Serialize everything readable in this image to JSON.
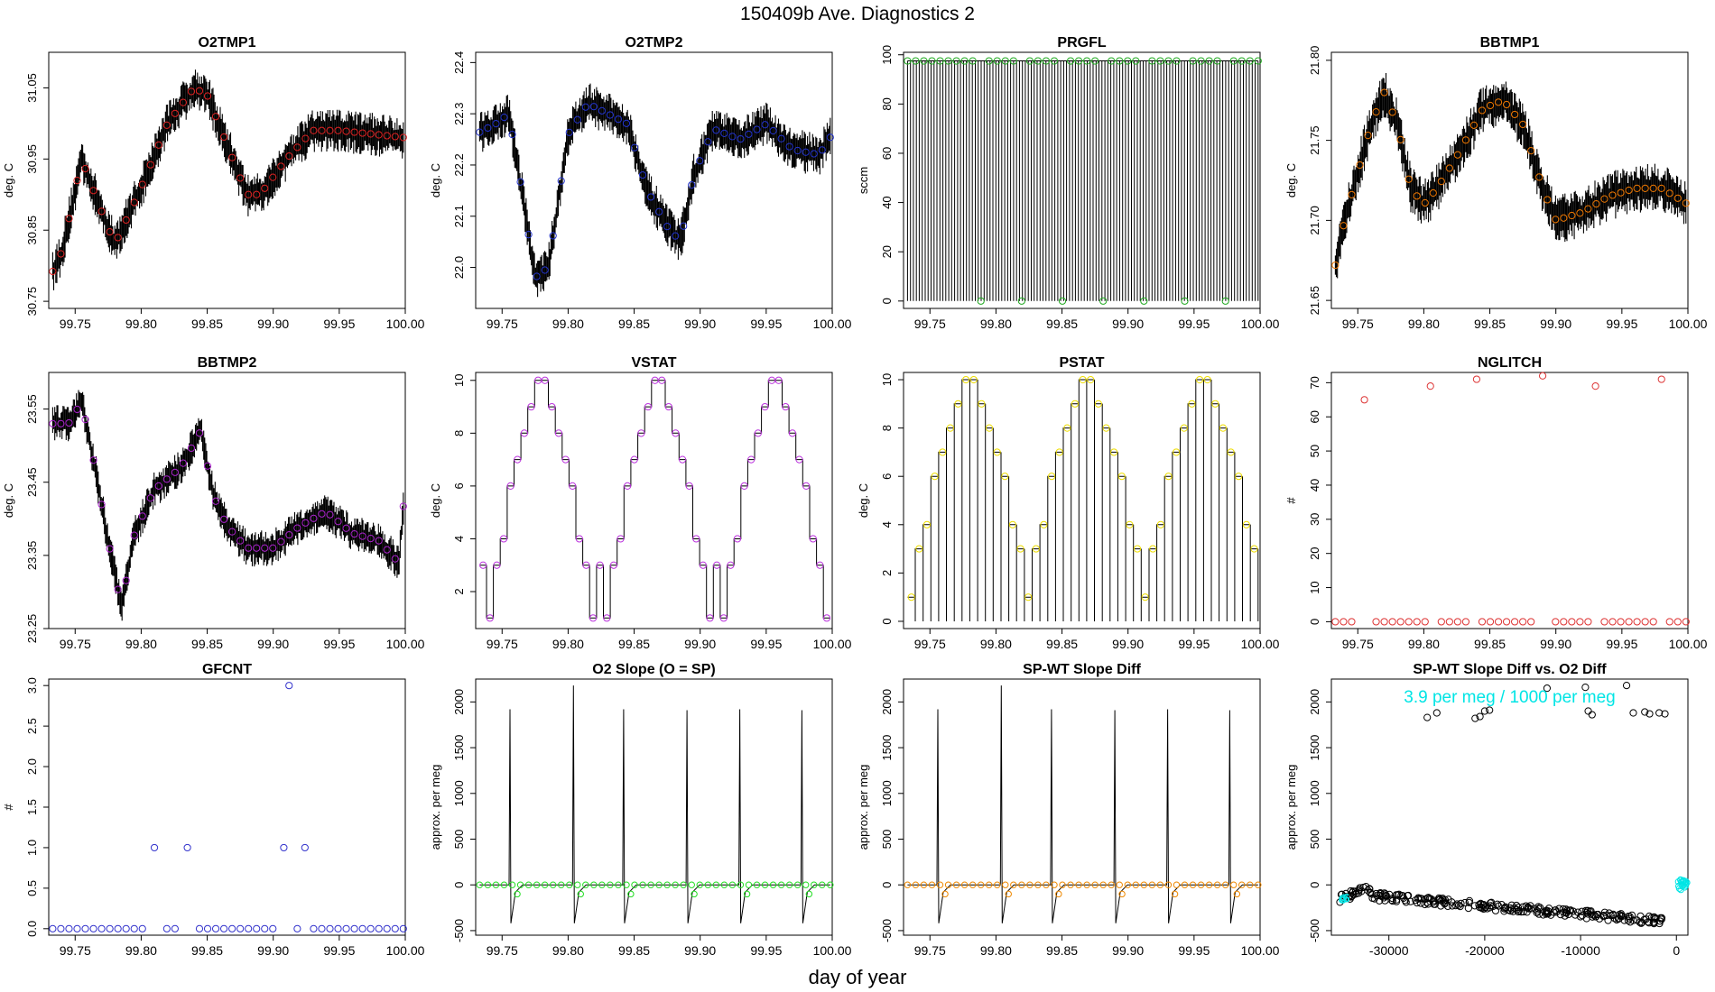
{
  "figure": {
    "title": "150409b   Ave. Diagnostics 2",
    "xlabel": "day of year"
  },
  "chart_data": [
    {
      "type": "line",
      "title": "O2TMP1",
      "ylabel": "deg. C",
      "xlim": [
        99.73,
        100.0
      ],
      "ylim": [
        30.74,
        31.1
      ],
      "xticks": [
        99.75,
        99.8,
        99.85,
        99.9,
        99.95,
        100.0
      ],
      "xtick_labels": [
        "99.75",
        "99.80",
        "99.85",
        "99.90",
        "99.95",
        "100.00"
      ],
      "yticks": [
        30.75,
        30.85,
        30.95,
        31.05
      ],
      "ytick_labels": [
        "30.75",
        "30.85",
        "30.95",
        "31.05"
      ],
      "marker_color": "#dd2222",
      "anchors": [
        [
          99.73,
          30.78
        ],
        [
          99.74,
          30.82
        ],
        [
          99.755,
          30.95
        ],
        [
          99.765,
          30.9
        ],
        [
          99.78,
          30.83
        ],
        [
          99.8,
          30.91
        ],
        [
          99.82,
          31.0
        ],
        [
          99.84,
          31.05
        ],
        [
          99.85,
          31.04
        ],
        [
          99.865,
          30.97
        ],
        [
          99.88,
          30.9
        ],
        [
          99.89,
          30.9
        ],
        [
          99.91,
          30.95
        ],
        [
          99.93,
          30.99
        ],
        [
          99.95,
          30.99
        ],
        [
          100.0,
          30.98
        ]
      ],
      "noise": 0.022
    },
    {
      "type": "line",
      "title": "O2TMP2",
      "ylabel": "deg. C",
      "xlim": [
        99.73,
        100.0
      ],
      "ylim": [
        21.92,
        22.42
      ],
      "xticks": [
        99.75,
        99.8,
        99.85,
        99.9,
        99.95,
        100.0
      ],
      "xtick_labels": [
        "99.75",
        "99.80",
        "99.85",
        "99.90",
        "99.95",
        "100.00"
      ],
      "yticks": [
        22.0,
        22.1,
        22.2,
        22.3,
        22.4
      ],
      "ytick_labels": [
        "22.0",
        "22.1",
        "22.2",
        "22.3",
        "22.4"
      ],
      "marker_color": "#2233cc",
      "anchors": [
        [
          99.73,
          22.26
        ],
        [
          99.745,
          22.28
        ],
        [
          99.755,
          22.3
        ],
        [
          99.765,
          22.15
        ],
        [
          99.775,
          21.98
        ],
        [
          99.785,
          22.0
        ],
        [
          99.8,
          22.26
        ],
        [
          99.815,
          22.32
        ],
        [
          99.83,
          22.3
        ],
        [
          99.845,
          22.28
        ],
        [
          99.86,
          22.15
        ],
        [
          99.875,
          22.08
        ],
        [
          99.885,
          22.05
        ],
        [
          99.895,
          22.18
        ],
        [
          99.91,
          22.27
        ],
        [
          99.93,
          22.25
        ],
        [
          99.95,
          22.28
        ],
        [
          99.97,
          22.23
        ],
        [
          99.99,
          22.22
        ],
        [
          100.0,
          22.26
        ]
      ],
      "noise": 0.03
    },
    {
      "type": "line",
      "title": "PRGFL",
      "ylabel": "sccm",
      "xlim": [
        99.73,
        100.0
      ],
      "ylim": [
        -3,
        101
      ],
      "xticks": [
        99.75,
        99.8,
        99.85,
        99.9,
        99.95,
        100.0
      ],
      "xtick_labels": [
        "99.75",
        "99.80",
        "99.85",
        "99.90",
        "99.95",
        "100.00"
      ],
      "yticks": [
        0,
        20,
        40,
        60,
        80,
        100
      ],
      "ytick_labels": [
        "0",
        "20",
        "40",
        "60",
        "80",
        "100"
      ],
      "marker_color": "#22aa22",
      "low": 0,
      "high": 97.5
    },
    {
      "type": "line",
      "title": "BBTMP1",
      "ylabel": "deg. C",
      "xlim": [
        99.73,
        100.0
      ],
      "ylim": [
        21.645,
        21.805
      ],
      "xticks": [
        99.75,
        99.8,
        99.85,
        99.9,
        99.95,
        100.0
      ],
      "xtick_labels": [
        "99.75",
        "99.80",
        "99.85",
        "99.90",
        "99.95",
        "100.00"
      ],
      "yticks": [
        21.65,
        21.7,
        21.75,
        21.8
      ],
      "ytick_labels": [
        "21.65",
        "21.70",
        "21.75",
        "21.80"
      ],
      "marker_color": "#ee7700",
      "anchors": [
        [
          99.73,
          21.66
        ],
        [
          99.74,
          21.7
        ],
        [
          99.76,
          21.76
        ],
        [
          99.77,
          21.78
        ],
        [
          99.78,
          21.76
        ],
        [
          99.79,
          21.72
        ],
        [
          99.8,
          21.71
        ],
        [
          99.81,
          21.72
        ],
        [
          99.825,
          21.74
        ],
        [
          99.845,
          21.77
        ],
        [
          99.86,
          21.775
        ],
        [
          99.875,
          21.76
        ],
        [
          99.89,
          21.72
        ],
        [
          99.9,
          21.7
        ],
        [
          99.92,
          21.705
        ],
        [
          99.94,
          21.715
        ],
        [
          99.96,
          21.72
        ],
        [
          99.98,
          21.72
        ],
        [
          100.0,
          21.71
        ]
      ],
      "noise": 0.011
    },
    {
      "type": "line",
      "title": "BBTMP2",
      "ylabel": "deg. C",
      "xlim": [
        99.73,
        100.0
      ],
      "ylim": [
        23.25,
        23.6
      ],
      "xticks": [
        99.75,
        99.8,
        99.85,
        99.9,
        99.95,
        100.0
      ],
      "xtick_labels": [
        "99.75",
        "99.80",
        "99.85",
        "99.90",
        "99.95",
        "100.00"
      ],
      "yticks": [
        23.25,
        23.35,
        23.45,
        23.55
      ],
      "ytick_labels": [
        "23.25",
        "23.35",
        "23.45",
        "23.55"
      ],
      "marker_color": "#aa22cc",
      "anchors": [
        [
          99.73,
          23.53
        ],
        [
          99.745,
          23.53
        ],
        [
          99.755,
          23.56
        ],
        [
          99.765,
          23.47
        ],
        [
          99.775,
          23.37
        ],
        [
          99.785,
          23.28
        ],
        [
          99.795,
          23.38
        ],
        [
          99.81,
          23.44
        ],
        [
          99.83,
          23.47
        ],
        [
          99.845,
          23.52
        ],
        [
          99.855,
          23.43
        ],
        [
          99.865,
          23.39
        ],
        [
          99.88,
          23.36
        ],
        [
          99.9,
          23.36
        ],
        [
          99.92,
          23.39
        ],
        [
          99.94,
          23.41
        ],
        [
          99.96,
          23.38
        ],
        [
          99.98,
          23.37
        ],
        [
          99.995,
          23.34
        ],
        [
          100.0,
          23.45
        ]
      ],
      "noise": 0.018
    },
    {
      "type": "line",
      "title": "VSTAT",
      "ylabel": "deg. C",
      "xlim": [
        99.73,
        100.0
      ],
      "ylim": [
        0.6,
        10.3
      ],
      "xticks": [
        99.75,
        99.8,
        99.85,
        99.9,
        99.95,
        100.0
      ],
      "xtick_labels": [
        "99.75",
        "99.80",
        "99.85",
        "99.90",
        "99.95",
        "100.00"
      ],
      "yticks": [
        2,
        4,
        6,
        8,
        10
      ],
      "ytick_labels": [
        "2",
        "4",
        "6",
        "8",
        "10"
      ],
      "marker_color": "#bb33dd",
      "sequence": [
        3,
        1,
        3,
        4,
        6,
        7,
        8,
        9,
        10,
        10,
        9,
        8,
        7,
        6,
        4,
        3,
        1
      ]
    },
    {
      "type": "line",
      "title": "PSTAT",
      "ylabel": "deg. C",
      "xlim": [
        99.73,
        100.0
      ],
      "ylim": [
        -0.3,
        10.3
      ],
      "xticks": [
        99.75,
        99.8,
        99.85,
        99.9,
        99.95,
        100.0
      ],
      "xtick_labels": [
        "99.75",
        "99.80",
        "99.85",
        "99.90",
        "99.95",
        "100.00"
      ],
      "yticks": [
        0,
        2,
        4,
        6,
        8,
        10
      ],
      "ytick_labels": [
        "0",
        "2",
        "4",
        "6",
        "8",
        "10"
      ],
      "marker_color": "#eedd00",
      "sequence": [
        1,
        3,
        4,
        6,
        7,
        8,
        9,
        10,
        10,
        9,
        8,
        7,
        6,
        4,
        3
      ]
    },
    {
      "type": "scatter",
      "title": "NGLITCH",
      "ylabel": "#",
      "xlim": [
        99.73,
        100.0
      ],
      "ylim": [
        -2,
        73
      ],
      "xticks": [
        99.75,
        99.8,
        99.85,
        99.9,
        99.95,
        100.0
      ],
      "xtick_labels": [
        "99.75",
        "99.80",
        "99.85",
        "99.90",
        "99.95",
        "100.00"
      ],
      "yticks": [
        0,
        10,
        20,
        30,
        40,
        50,
        60,
        70
      ],
      "ytick_labels": [
        "0",
        "10",
        "20",
        "30",
        "40",
        "50",
        "60",
        "70"
      ],
      "marker_color": "#dd3333",
      "points": [
        [
          99.755,
          65
        ],
        [
          99.805,
          69
        ],
        [
          99.84,
          71
        ],
        [
          99.89,
          72
        ],
        [
          99.93,
          69
        ],
        [
          99.98,
          71
        ]
      ],
      "zero_gaps": [
        99.755,
        99.805,
        99.84,
        99.89,
        99.93,
        99.98
      ]
    },
    {
      "type": "scatter",
      "title": "GFCNT",
      "ylabel": "#",
      "xlim": [
        99.73,
        100.0
      ],
      "ylim": [
        -0.08,
        3.08
      ],
      "xticks": [
        99.75,
        99.8,
        99.85,
        99.9,
        99.95,
        100.0
      ],
      "xtick_labels": [
        "99.75",
        "99.80",
        "99.85",
        "99.90",
        "99.95",
        "100.00"
      ],
      "yticks": [
        0,
        0.5,
        1,
        1.5,
        2,
        2.5,
        3
      ],
      "ytick_labels": [
        "0.0",
        "0.5",
        "1.0",
        "1.5",
        "2.0",
        "2.5",
        "3.0"
      ],
      "marker_color": "#3333cc",
      "points": [
        [
          99.81,
          1
        ],
        [
          99.835,
          1
        ],
        [
          99.908,
          1
        ],
        [
          99.912,
          3
        ],
        [
          99.924,
          1
        ]
      ]
    },
    {
      "type": "line",
      "title": "O2 Slope (O = SP)",
      "ylabel": "approx. per meg",
      "xlim": [
        99.73,
        100.0
      ],
      "ylim": [
        -550,
        2250
      ],
      "xticks": [
        99.75,
        99.8,
        99.85,
        99.9,
        99.95,
        100.0
      ],
      "xtick_labels": [
        "99.75",
        "99.80",
        "99.85",
        "99.90",
        "99.95",
        "100.00"
      ],
      "yticks": [
        -500,
        0,
        500,
        1000,
        1500,
        2000
      ],
      "ytick_labels": [
        "-500",
        "0",
        "500",
        "1000",
        "1500",
        "2000"
      ],
      "marker_color": "#22dd22",
      "spikes": [
        [
          99.756,
          1920
        ],
        [
          99.804,
          2180
        ],
        [
          99.842,
          1920
        ],
        [
          99.89,
          1910
        ],
        [
          99.93,
          1920
        ],
        [
          99.977,
          1910
        ]
      ]
    },
    {
      "type": "line",
      "title": "SP-WT Slope Diff",
      "ylabel": "approx. per meg",
      "xlim": [
        99.73,
        100.0
      ],
      "ylim": [
        -550,
        2250
      ],
      "xticks": [
        99.75,
        99.8,
        99.85,
        99.9,
        99.95,
        100.0
      ],
      "xtick_labels": [
        "99.75",
        "99.80",
        "99.85",
        "99.90",
        "99.95",
        "100.00"
      ],
      "yticks": [
        -500,
        0,
        500,
        1000,
        1500,
        2000
      ],
      "ytick_labels": [
        "-500",
        "0",
        "500",
        "1000",
        "1500",
        "2000"
      ],
      "marker_color": "#ee8800",
      "spikes": [
        [
          99.756,
          1920
        ],
        [
          99.804,
          2180
        ],
        [
          99.842,
          1920
        ],
        [
          99.89,
          1910
        ],
        [
          99.93,
          1920
        ],
        [
          99.977,
          1910
        ]
      ]
    },
    {
      "type": "scatter",
      "title": "SP-WT Slope Diff vs. O2 Diff",
      "ylabel": "approx. per meg",
      "xlim": [
        -36000,
        1200
      ],
      "ylim": [
        -550,
        2250
      ],
      "xticks": [
        -30000,
        -20000,
        -10000,
        0
      ],
      "xtick_labels": [
        "-30000",
        "-20000",
        "-10000",
        "0"
      ],
      "yticks": [
        -500,
        0,
        500,
        1000,
        1500,
        2000
      ],
      "ytick_labels": [
        "-500",
        "0",
        "500",
        "1000",
        "1500",
        "2000"
      ],
      "marker_color": "#00e5e5",
      "annotation": "3.9 per meg / 1000 per meg",
      "cyan_label": "6",
      "high_points": [
        [
          -26000,
          1830
        ],
        [
          -25000,
          1880
        ],
        [
          -21000,
          1820
        ],
        [
          -20500,
          1840
        ],
        [
          -20000,
          1900
        ],
        [
          -19500,
          1910
        ],
        [
          -13500,
          2150
        ],
        [
          -9500,
          2160
        ],
        [
          -9200,
          1900
        ],
        [
          -8800,
          1860
        ],
        [
          -5200,
          2180
        ],
        [
          -4500,
          1880
        ],
        [
          -3300,
          1890
        ],
        [
          -2800,
          1870
        ],
        [
          -1800,
          1880
        ],
        [
          -1200,
          1870
        ]
      ]
    }
  ]
}
